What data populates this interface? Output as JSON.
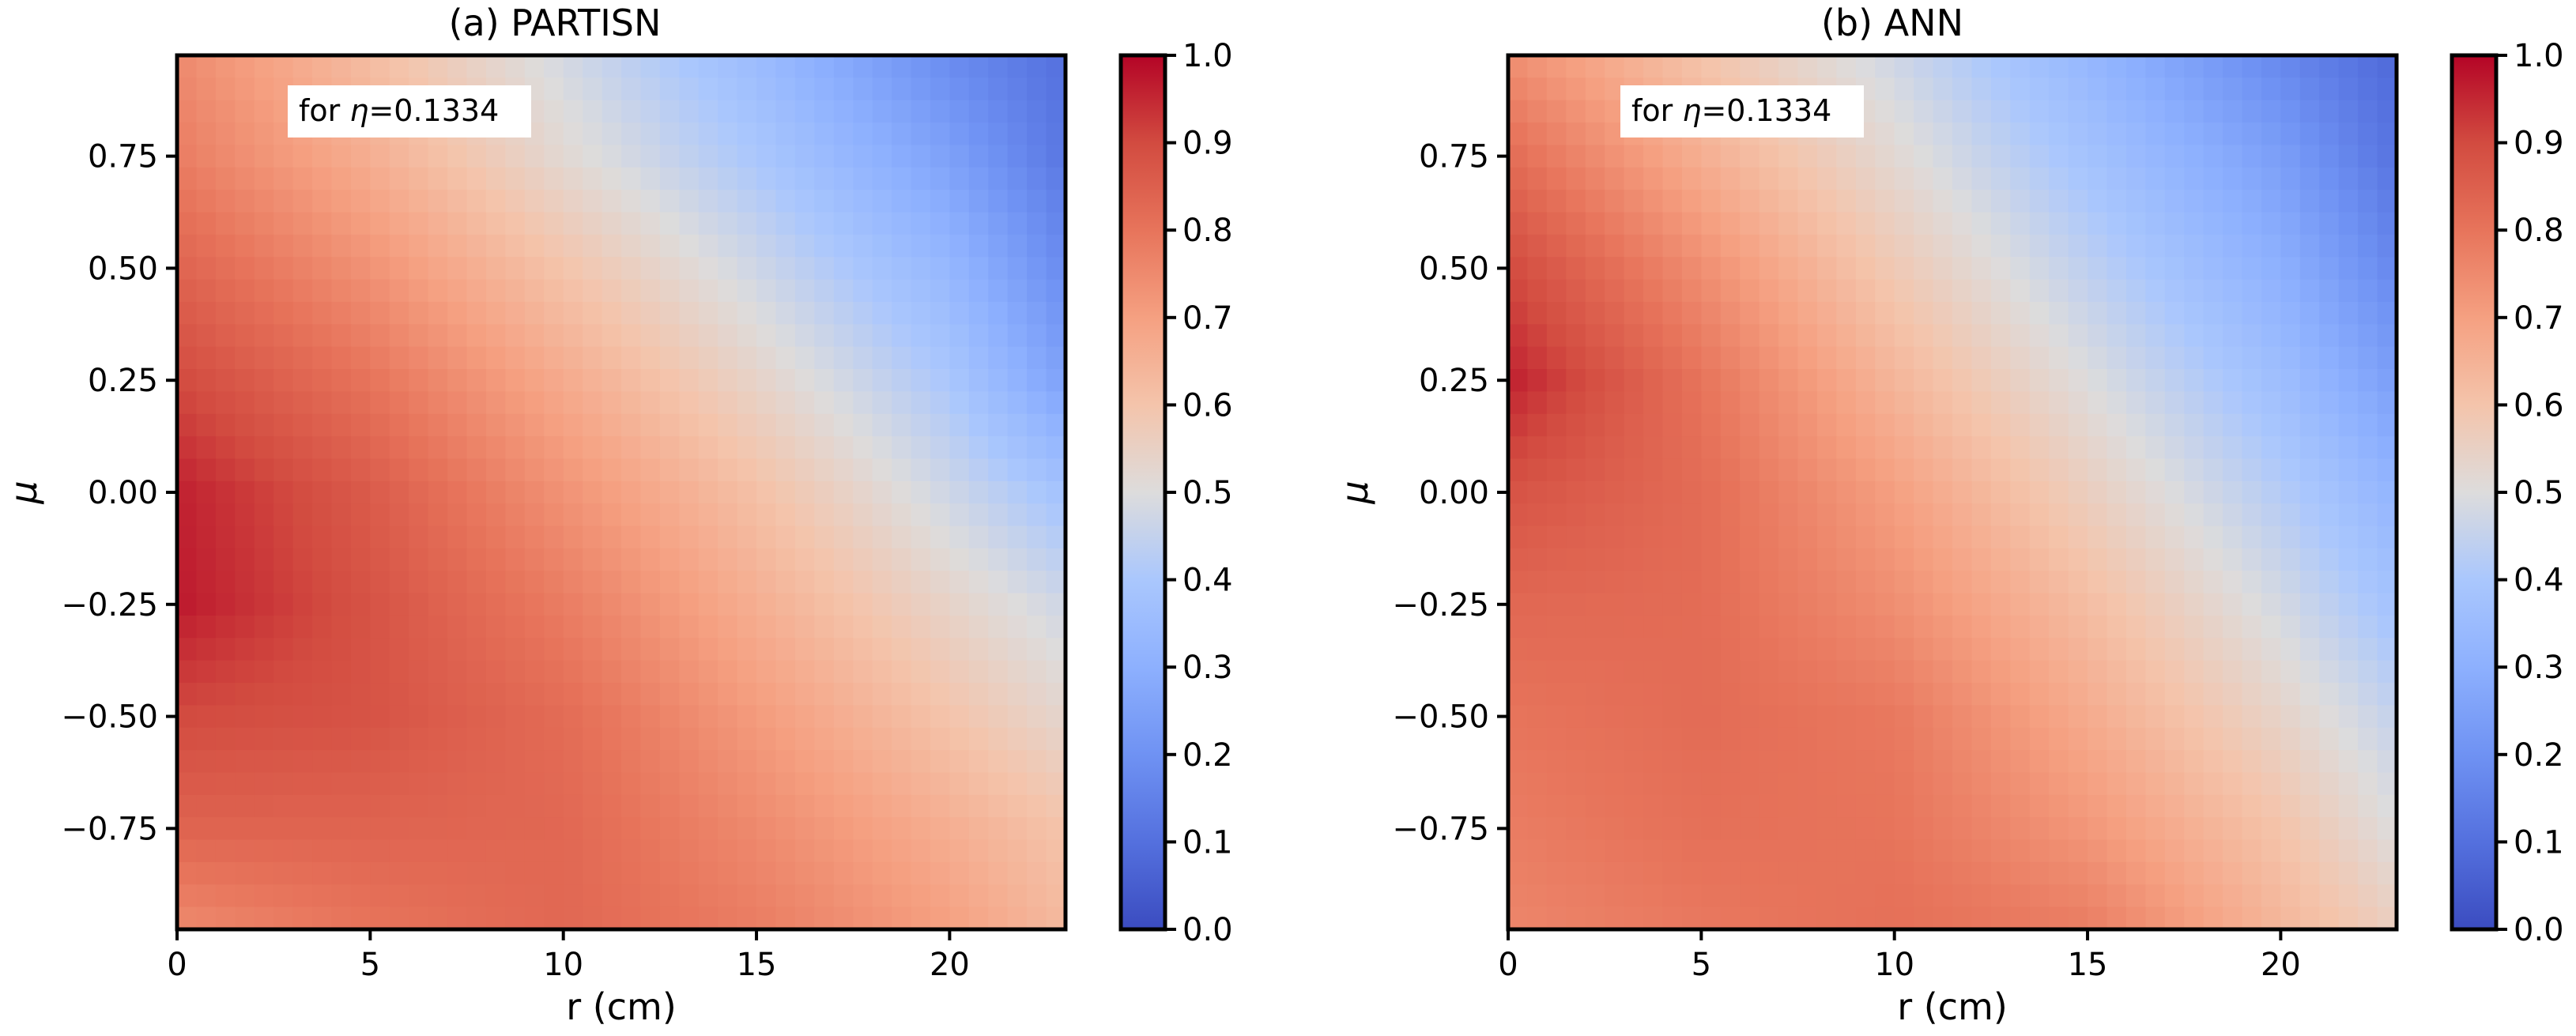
{
  "chart_data": [
    {
      "type": "heatmap",
      "title": "(a) PARTISN",
      "xlabel": "r (cm)",
      "ylabel": "μ",
      "xlim": [
        0,
        23
      ],
      "ylim": [
        -0.975,
        0.975
      ],
      "xticks": [
        0,
        5,
        10,
        15,
        20
      ],
      "xtick_labels": [
        "0",
        "5",
        "10",
        "15",
        "20"
      ],
      "yticks": [
        0.75,
        0.5,
        0.25,
        0.0,
        -0.25,
        -0.5,
        -0.75
      ],
      "ytick_labels": [
        "0.75",
        "0.50",
        "0.25",
        "0.00",
        "−0.25",
        "−0.50",
        "−0.75"
      ],
      "annotation": {
        "prefix": "for ",
        "symbol": "η",
        "suffix": "=0.1334"
      },
      "colormap": "coolwarm",
      "colorbar": {
        "range": [
          0,
          1
        ],
        "ticks": [
          "0.0",
          "0.1",
          "0.2",
          "0.3",
          "0.4",
          "0.5",
          "0.6",
          "0.7",
          "0.8",
          "0.9",
          "1.0"
        ]
      },
      "x": [
        0,
        5,
        10,
        15,
        20,
        23
      ],
      "y": [
        0.975,
        0.75,
        0.5,
        0.25,
        0.0,
        -0.25,
        -0.5,
        -0.75,
        -0.975
      ],
      "z": [
        [
          0.75,
          0.62,
          0.48,
          0.35,
          0.18,
          0.1
        ],
        [
          0.78,
          0.66,
          0.52,
          0.4,
          0.25,
          0.12
        ],
        [
          0.84,
          0.73,
          0.6,
          0.47,
          0.33,
          0.18
        ],
        [
          0.9,
          0.8,
          0.67,
          0.54,
          0.4,
          0.25
        ],
        [
          0.96,
          0.86,
          0.73,
          0.61,
          0.47,
          0.38
        ],
        [
          0.97,
          0.88,
          0.78,
          0.66,
          0.54,
          0.47
        ],
        [
          0.9,
          0.88,
          0.82,
          0.71,
          0.6,
          0.53
        ],
        [
          0.84,
          0.84,
          0.83,
          0.75,
          0.66,
          0.6
        ],
        [
          0.75,
          0.8,
          0.83,
          0.78,
          0.7,
          0.63
        ]
      ]
    },
    {
      "type": "heatmap",
      "title": "(b) ANN",
      "xlabel": "r (cm)",
      "ylabel": "μ",
      "xlim": [
        0,
        23
      ],
      "ylim": [
        -0.975,
        0.975
      ],
      "xticks": [
        0,
        5,
        10,
        15,
        20
      ],
      "xtick_labels": [
        "0",
        "5",
        "10",
        "15",
        "20"
      ],
      "yticks": [
        0.75,
        0.5,
        0.25,
        0.0,
        -0.25,
        -0.5,
        -0.75
      ],
      "ytick_labels": [
        "0.75",
        "0.50",
        "0.25",
        "0.00",
        "−0.25",
        "−0.50",
        "−0.75"
      ],
      "annotation": {
        "prefix": "for ",
        "symbol": "η",
        "suffix": "=0.1334"
      },
      "colormap": "coolwarm",
      "colorbar": {
        "range": [
          0,
          1
        ],
        "ticks": [
          "0.0",
          "0.1",
          "0.2",
          "0.3",
          "0.4",
          "0.5",
          "0.6",
          "0.7",
          "0.8",
          "0.9",
          "1.0"
        ]
      },
      "x": [
        0,
        5,
        10,
        15,
        20,
        23
      ],
      "y": [
        0.975,
        0.75,
        0.5,
        0.25,
        0.0,
        -0.25,
        -0.5,
        -0.75,
        -0.975
      ],
      "z": [
        [
          0.74,
          0.6,
          0.47,
          0.33,
          0.17,
          0.08
        ],
        [
          0.82,
          0.66,
          0.52,
          0.38,
          0.24,
          0.11
        ],
        [
          0.9,
          0.74,
          0.58,
          0.44,
          0.3,
          0.17
        ],
        [
          0.96,
          0.8,
          0.64,
          0.5,
          0.36,
          0.24
        ],
        [
          0.88,
          0.82,
          0.7,
          0.56,
          0.42,
          0.32
        ],
        [
          0.83,
          0.82,
          0.74,
          0.62,
          0.48,
          0.38
        ],
        [
          0.8,
          0.82,
          0.79,
          0.67,
          0.54,
          0.45
        ],
        [
          0.78,
          0.81,
          0.8,
          0.72,
          0.6,
          0.5
        ],
        [
          0.76,
          0.79,
          0.81,
          0.78,
          0.64,
          0.56
        ]
      ]
    }
  ]
}
